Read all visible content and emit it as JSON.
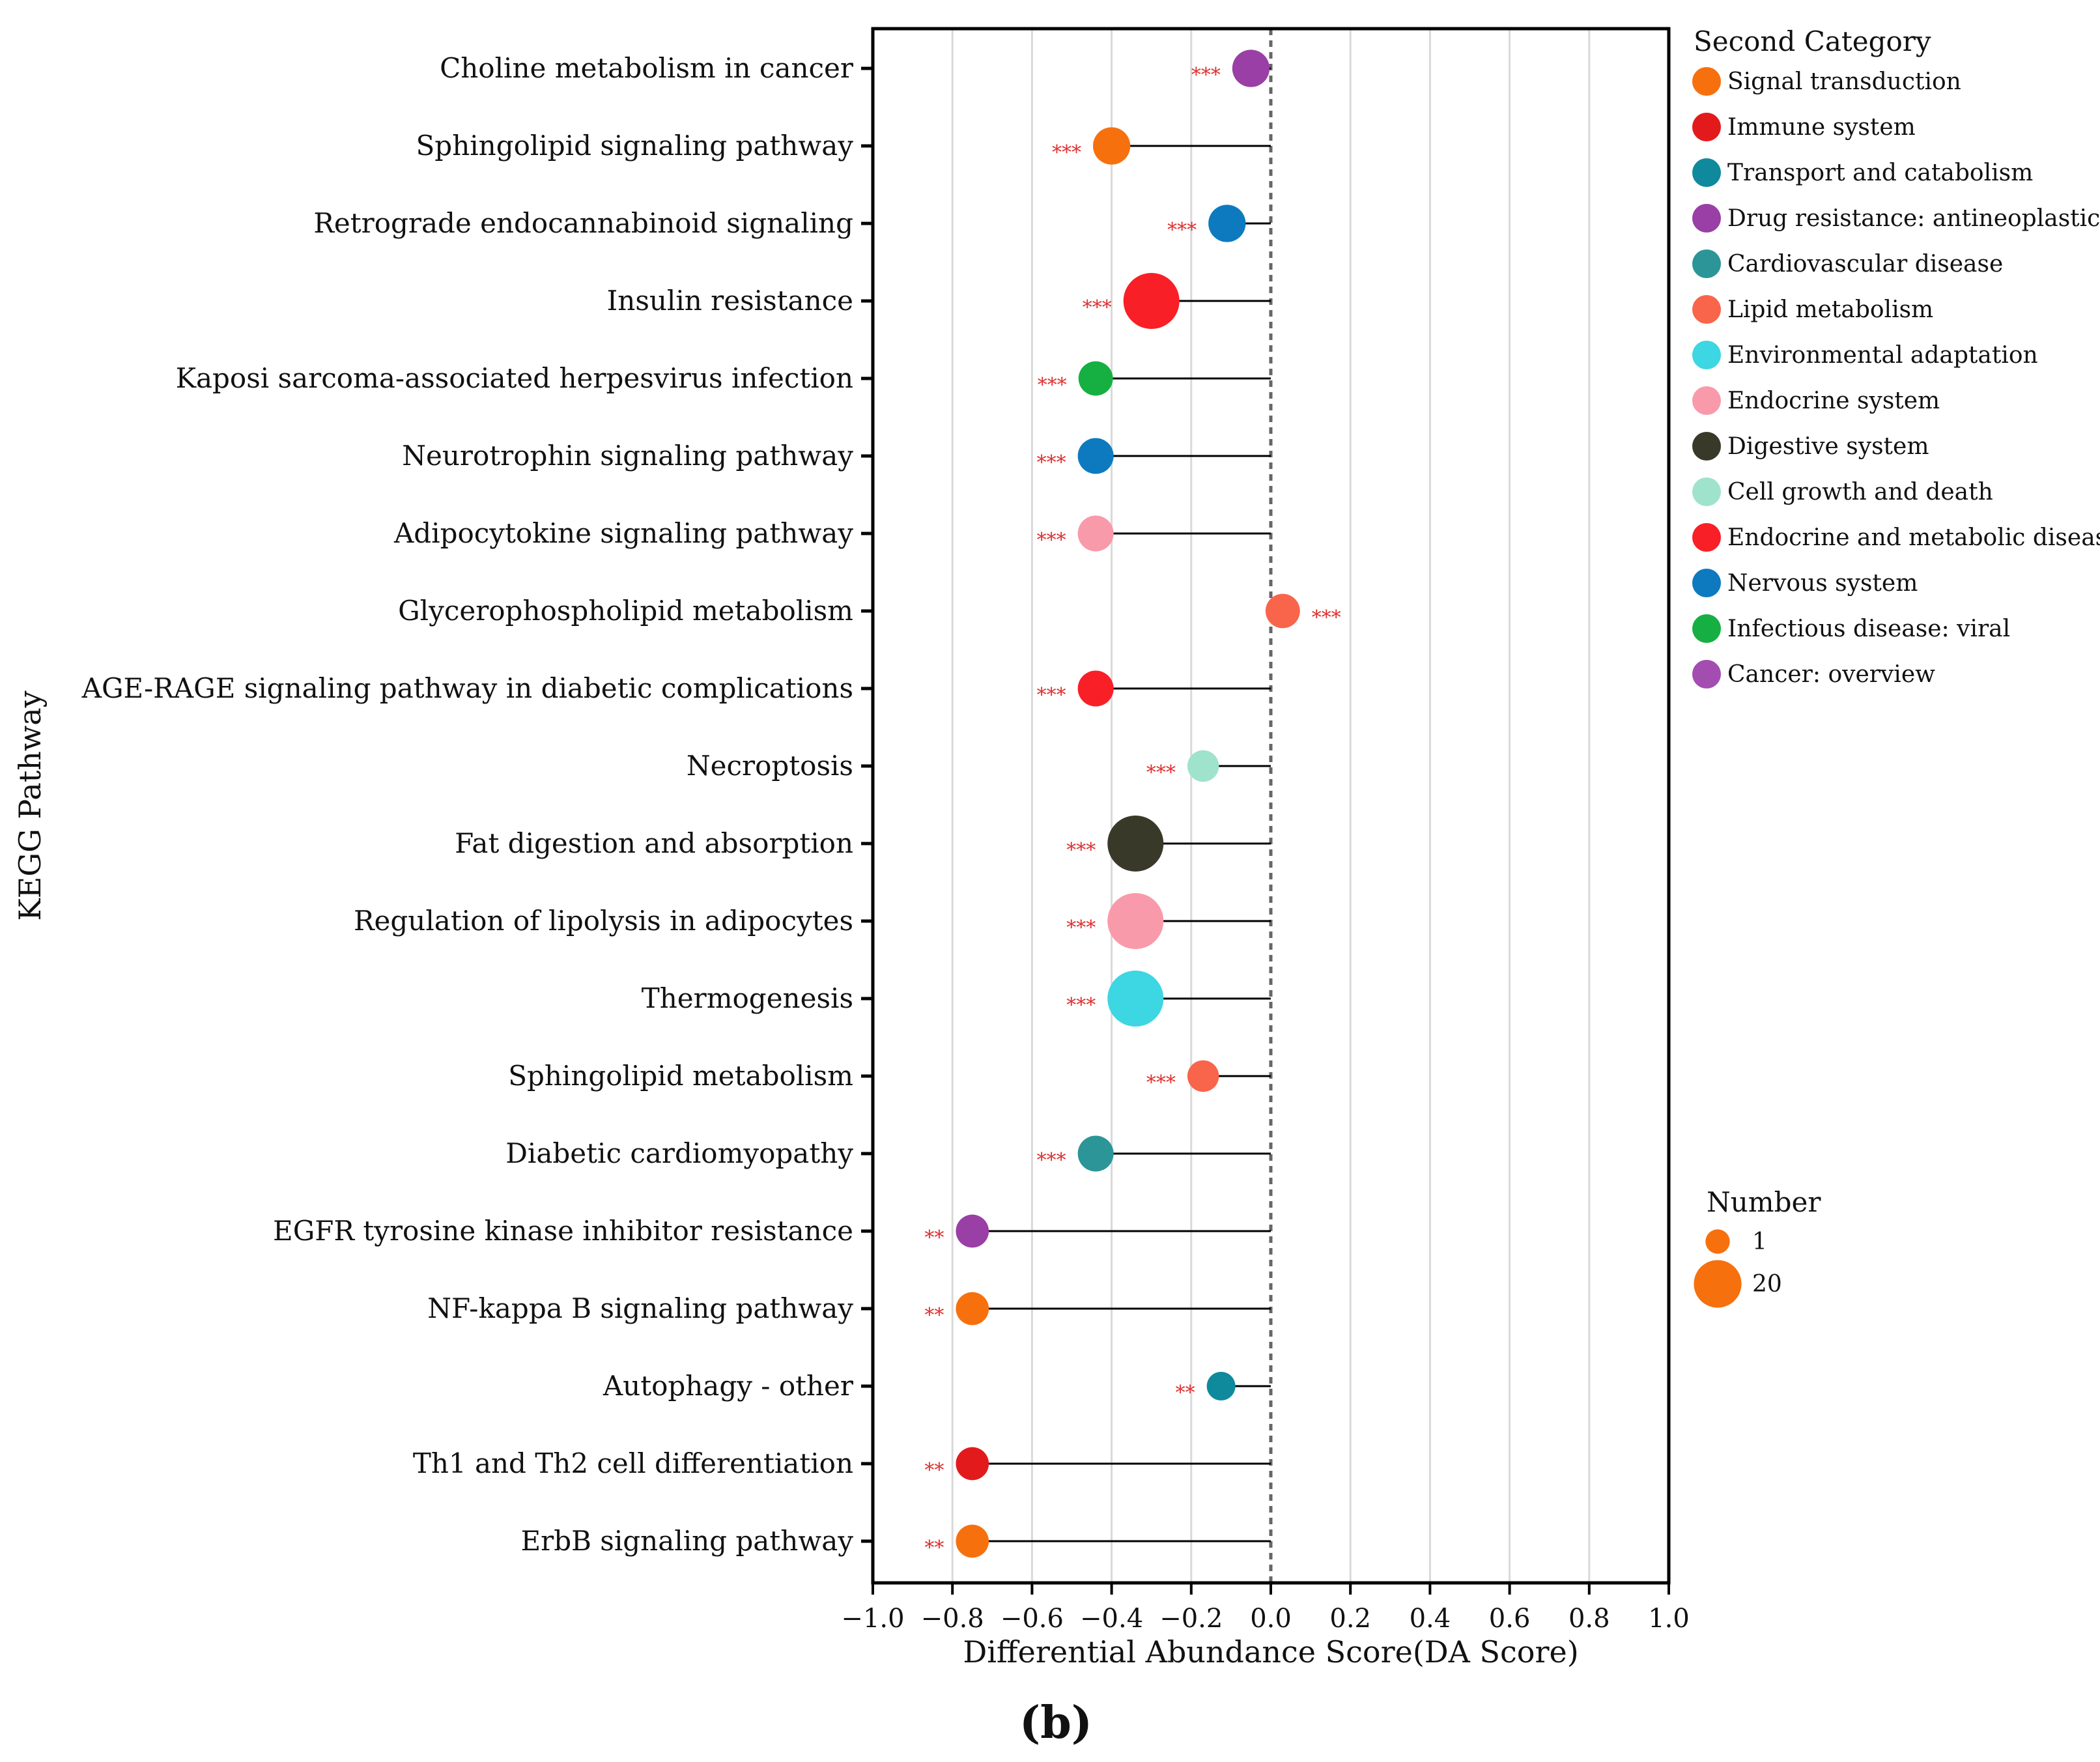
{
  "chart_data": {
    "type": "lollipop",
    "xlabel": "Differential Abundance Score(DA Score)",
    "ylabel": "KEGG Pathway",
    "xlim": [
      -1.0,
      1.0
    ],
    "xticks": [
      "−1.0",
      "−0.8",
      "−0.6",
      "−0.4",
      "−0.2",
      "0.0",
      "0.2",
      "0.4",
      "0.6",
      "0.8",
      "1.0"
    ],
    "xtick_values": [
      -1.0,
      -0.8,
      -0.6,
      -0.4,
      -0.2,
      0.0,
      0.2,
      0.4,
      0.6,
      0.8,
      1.0
    ],
    "grid": "vertical",
    "panel_label": "(b)",
    "pathways": [
      {
        "name": "Choline metabolism in cancer",
        "value": -0.05,
        "category": "Drug resistance: antineoplastic",
        "number": 7,
        "sig": "***"
      },
      {
        "name": "Sphingolipid signaling pathway",
        "value": -0.4,
        "category": "Signal transduction",
        "number": 7,
        "sig": "***"
      },
      {
        "name": "Retrograde endocannabinoid signaling",
        "value": -0.11,
        "category": "Nervous system",
        "number": 7,
        "sig": "***"
      },
      {
        "name": "Insulin resistance",
        "value": -0.3,
        "category": "Endocrine and metabolic disease",
        "number": 20,
        "sig": "***"
      },
      {
        "name": "Kaposi sarcoma-associated herpesvirus infection",
        "value": -0.44,
        "category": "Infectious disease: viral",
        "number": 5,
        "sig": "***"
      },
      {
        "name": "Neurotrophin signaling pathway",
        "value": -0.44,
        "category": "Nervous system",
        "number": 6,
        "sig": "***"
      },
      {
        "name": "Adipocytokine signaling pathway",
        "value": -0.44,
        "category": "Endocrine system",
        "number": 6,
        "sig": "***"
      },
      {
        "name": "Glycerophospholipid metabolism",
        "value": 0.03,
        "category": "Lipid metabolism",
        "number": 5,
        "sig": "***"
      },
      {
        "name": "AGE-RAGE signaling pathway in diabetic complications",
        "value": -0.44,
        "category": "Endocrine and metabolic disease",
        "number": 6,
        "sig": "***"
      },
      {
        "name": "Necroptosis",
        "value": -0.17,
        "category": "Cell growth and death",
        "number": 3,
        "sig": "***"
      },
      {
        "name": "Fat digestion and absorption",
        "value": -0.34,
        "category": "Digestive system",
        "number": 20,
        "sig": "***"
      },
      {
        "name": "Regulation of lipolysis in adipocytes",
        "value": -0.34,
        "category": "Endocrine system",
        "number": 20,
        "sig": "***"
      },
      {
        "name": "Thermogenesis",
        "value": -0.34,
        "category": "Environmental adaptation",
        "number": 20,
        "sig": "***"
      },
      {
        "name": "Sphingolipid metabolism",
        "value": -0.17,
        "category": "Lipid metabolism",
        "number": 3,
        "sig": "***"
      },
      {
        "name": "Diabetic cardiomyopathy",
        "value": -0.44,
        "category": "Cardiovascular disease",
        "number": 6,
        "sig": "***"
      },
      {
        "name": "EGFR tyrosine kinase inhibitor resistance",
        "value": -0.75,
        "category": "Drug resistance: antineoplastic",
        "number": 4,
        "sig": "**"
      },
      {
        "name": "NF-kappa B signaling pathway",
        "value": -0.75,
        "category": "Signal transduction",
        "number": 4,
        "sig": "**"
      },
      {
        "name": "Autophagy - other",
        "value": -0.125,
        "category": "Transport and catabolism",
        "number": 1,
        "sig": "**"
      },
      {
        "name": "Th1 and Th2 cell differentiation",
        "value": -0.75,
        "category": "Immune system",
        "number": 4,
        "sig": "**"
      },
      {
        "name": "ErbB signaling pathway",
        "value": -0.75,
        "category": "Signal transduction",
        "number": 4,
        "sig": "**"
      }
    ],
    "legend": {
      "title": "Second Category",
      "items": [
        {
          "label": "Signal transduction",
          "color": "#f7700e"
        },
        {
          "label": "Immune system",
          "color": "#e31a1c"
        },
        {
          "label": "Transport and catabolism",
          "color": "#0e8a9c"
        },
        {
          "label": "Drug resistance: antineoplastic",
          "color": "#993fa5"
        },
        {
          "label": "Cardiovascular disease",
          "color": "#2c9597"
        },
        {
          "label": "Lipid metabolism",
          "color": "#f8654b"
        },
        {
          "label": "Environmental adaptation",
          "color": "#3dd6e3"
        },
        {
          "label": "Endocrine system",
          "color": "#f99aab"
        },
        {
          "label": "Digestive system",
          "color": "#39392a"
        },
        {
          "label": "Cell growth and death",
          "color": "#9fe3cd"
        },
        {
          "label": "Endocrine and metabolic disease",
          "color": "#f91f27"
        },
        {
          "label": "Nervous system",
          "color": "#0d7abf"
        },
        {
          "label": "Infectious disease: viral",
          "color": "#16b042"
        },
        {
          "label": "Cancer: overview",
          "color": "#a34db1"
        }
      ]
    },
    "size_legend": {
      "title": "Number",
      "items": [
        {
          "label": "1",
          "value": 1,
          "color": "#f7700e"
        },
        {
          "label": "20",
          "value": 20,
          "color": "#f7700e"
        }
      ]
    }
  }
}
